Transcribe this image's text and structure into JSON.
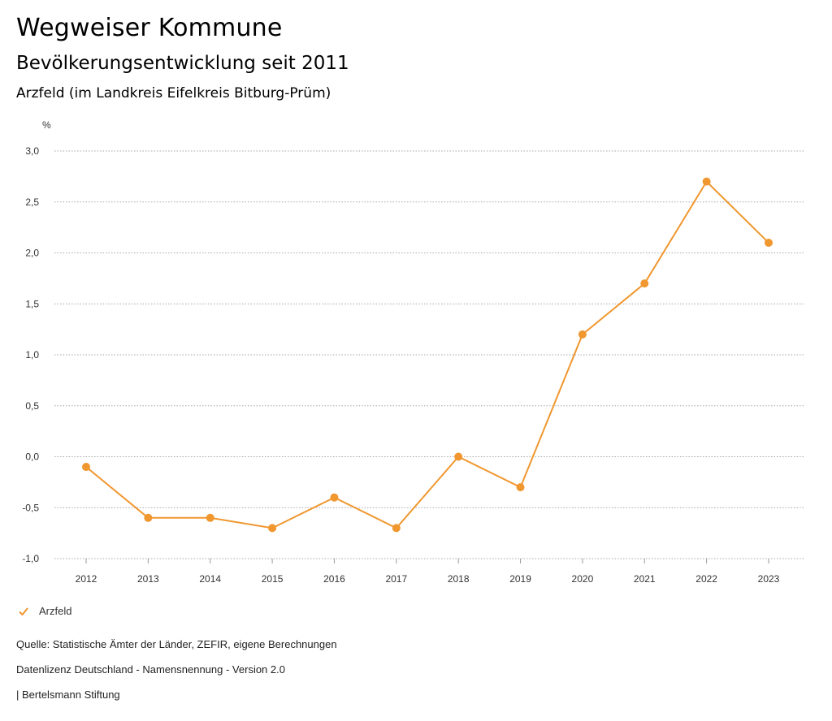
{
  "header": {
    "title": "Wegweiser Kommune",
    "subtitle": "Bevölkerungsentwicklung seit 2011",
    "region": "Arzfeld (im Landkreis Eifelkreis Bitburg-Prüm)"
  },
  "chart_data": {
    "type": "line",
    "ylabel": "%",
    "ylim": [
      -1.0,
      3.0
    ],
    "yticks": [
      -1.0,
      -0.5,
      0.0,
      0.5,
      1.0,
      1.5,
      2.0,
      2.5,
      3.0
    ],
    "ytick_labels": [
      "-1,0",
      "-0,5",
      "0,0",
      "0,5",
      "1,0",
      "1,5",
      "2,0",
      "2,5",
      "3,0"
    ],
    "categories": [
      "2012",
      "2013",
      "2014",
      "2015",
      "2016",
      "2017",
      "2018",
      "2019",
      "2020",
      "2021",
      "2022",
      "2023"
    ],
    "series": [
      {
        "name": "Arzfeld",
        "color": "#f0972f",
        "values": [
          -0.1,
          -0.6,
          -0.6,
          -0.7,
          -0.4,
          -0.7,
          0.0,
          -0.3,
          1.2,
          1.7,
          2.7,
          2.1
        ]
      }
    ],
    "grid": true,
    "legend_position": "bottom-left"
  },
  "legend": {
    "label": "Arzfeld",
    "icon": "check-icon"
  },
  "footer": {
    "source": "Quelle: Statistische Ämter der Länder, ZEFIR, eigene Berechnungen",
    "license": "Datenlizenz Deutschland - Namensnennung - Version 2.0",
    "publisher": "| Bertelsmann Stiftung"
  }
}
